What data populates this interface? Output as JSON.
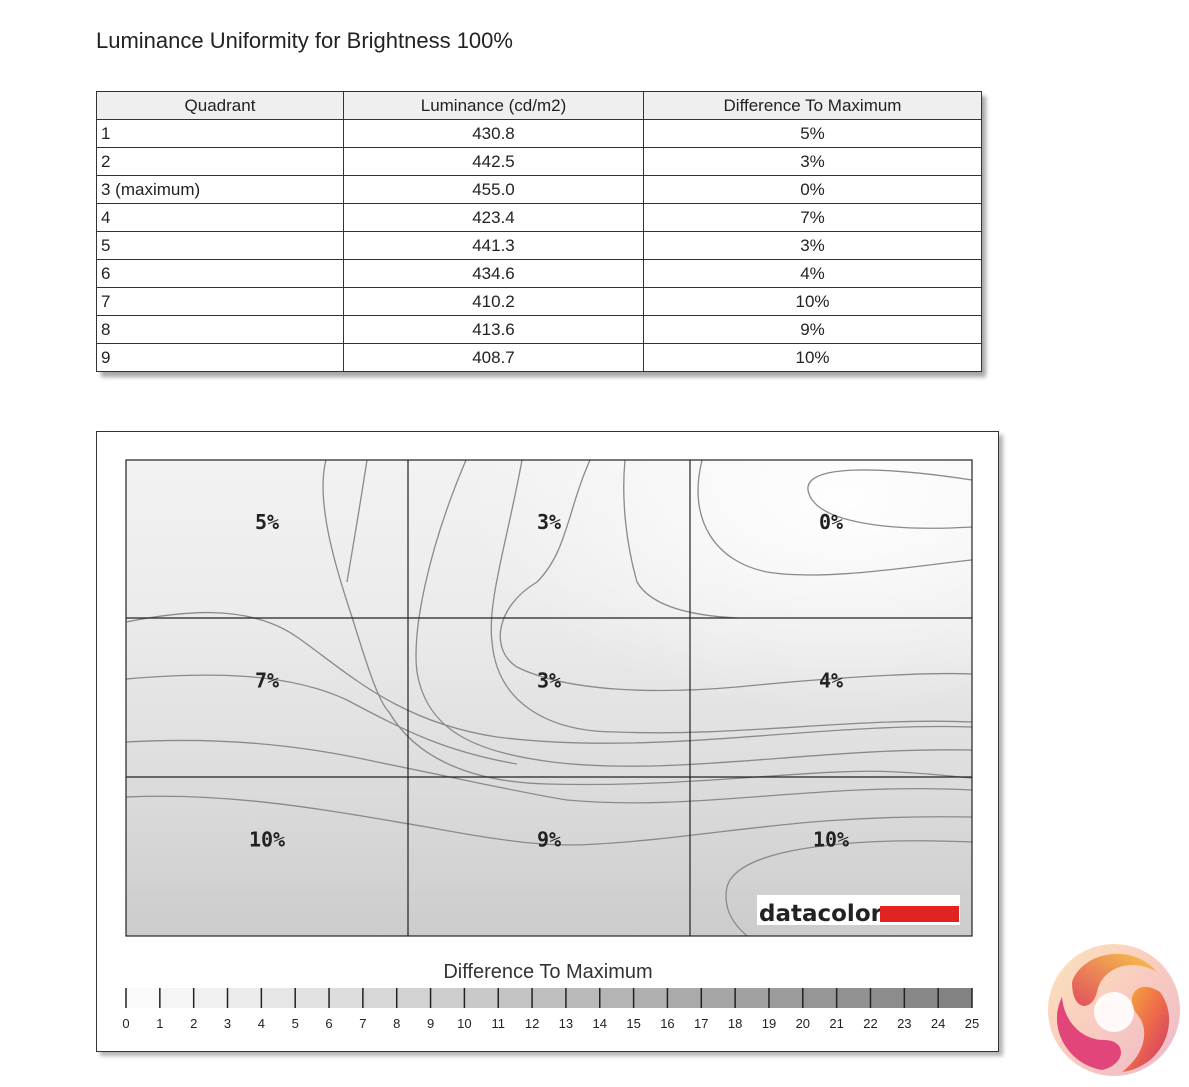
{
  "title": "Luminance Uniformity for Brightness 100%",
  "table": {
    "headers": [
      "Quadrant",
      "Luminance (cd/m2)",
      "Difference To Maximum"
    ],
    "rows": [
      [
        "1",
        "430.8",
        "5%"
      ],
      [
        "2",
        "442.5",
        "3%"
      ],
      [
        "3 (maximum)",
        "455.0",
        "0%"
      ],
      [
        "4",
        "423.4",
        "7%"
      ],
      [
        "5",
        "441.3",
        "3%"
      ],
      [
        "6",
        "434.6",
        "4%"
      ],
      [
        "7",
        "410.2",
        "10%"
      ],
      [
        "8",
        "413.6",
        "9%"
      ],
      [
        "9",
        "408.7",
        "10%"
      ]
    ]
  },
  "chart_data": {
    "type": "heatmap",
    "rows": 3,
    "cols": 3,
    "values": [
      [
        5,
        3,
        0
      ],
      [
        7,
        3,
        4
      ],
      [
        10,
        9,
        10
      ]
    ],
    "labels": [
      [
        "5%",
        "3%",
        "0%"
      ],
      [
        "7%",
        "3%",
        "4%"
      ],
      [
        "10%",
        "9%",
        "10%"
      ]
    ],
    "legend_title": "Difference To Maximum",
    "scale_min": 0,
    "scale_max": 25,
    "scale_ticks": [
      "0",
      "1",
      "2",
      "3",
      "4",
      "5",
      "6",
      "7",
      "8",
      "9",
      "10",
      "11",
      "12",
      "13",
      "14",
      "15",
      "16",
      "17",
      "18",
      "19",
      "20",
      "21",
      "22",
      "23",
      "24",
      "25"
    ],
    "brand": "datacolor",
    "brand_color": "#e02424"
  }
}
